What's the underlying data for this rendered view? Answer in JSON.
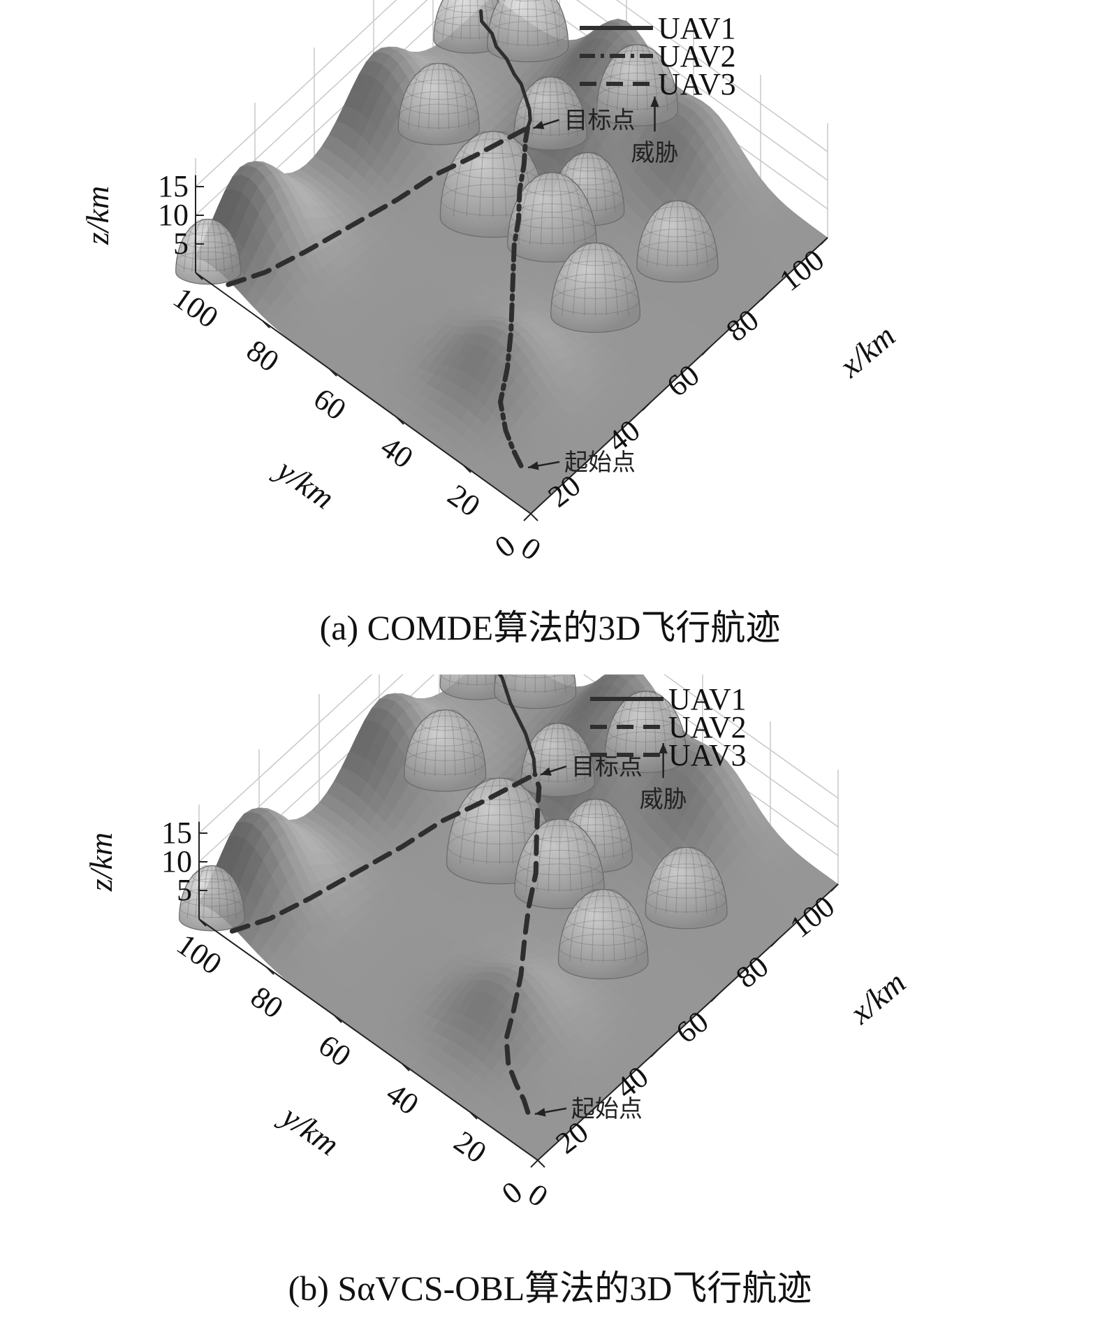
{
  "chart_data": [
    {
      "type": "3d-surface-trajectory",
      "caption": "(a) COMDE算法的3D飞行航迹",
      "axes": {
        "x": {
          "label": "x/km",
          "ticks": [
            0,
            20,
            40,
            60,
            80,
            100
          ],
          "range": [
            0,
            100
          ]
        },
        "y": {
          "label": "y/km",
          "ticks": [
            0,
            20,
            40,
            60,
            80,
            100
          ],
          "range": [
            0,
            100
          ]
        },
        "z": {
          "label": "z/km",
          "ticks": [
            5,
            10,
            15
          ],
          "range": [
            0,
            15
          ]
        }
      },
      "grid": true,
      "legend_position": "top-right",
      "legend": [
        {
          "name": "UAV1",
          "style": "solid"
        },
        {
          "name": "UAV2",
          "style": "dash-dot"
        },
        {
          "name": "UAV3",
          "style": "dashed"
        }
      ],
      "annotations": {
        "target": "目标点",
        "threat": "威胁",
        "start": "起始点"
      },
      "target_point": [
        78,
        70,
        0
      ],
      "start_point": [
        8,
        10,
        0
      ],
      "mountains": [
        {
          "x": 15,
          "y": 95,
          "h": 13
        },
        {
          "x": 60,
          "y": 95,
          "h": 11
        },
        {
          "x": 80,
          "y": 55,
          "h": 9
        },
        {
          "x": 98,
          "y": 60,
          "h": 12
        },
        {
          "x": 95,
          "y": 35,
          "h": 9
        },
        {
          "x": 25,
          "y": 30,
          "h": 7
        }
      ],
      "threats": [
        {
          "x": 2,
          "y": 98,
          "r": 8
        },
        {
          "x": 88,
          "y": 96,
          "r": 9
        },
        {
          "x": 65,
          "y": 85,
          "r": 10
        },
        {
          "x": 80,
          "y": 65,
          "r": 9
        },
        {
          "x": 95,
          "y": 85,
          "r": 10
        },
        {
          "x": 55,
          "y": 60,
          "r": 13
        },
        {
          "x": 58,
          "y": 45,
          "r": 11
        },
        {
          "x": 70,
          "y": 45,
          "r": 9
        },
        {
          "x": 50,
          "y": 25,
          "r": 11
        },
        {
          "x": 72,
          "y": 20,
          "r": 10
        },
        {
          "x": 98,
          "y": 55,
          "r": 10
        }
      ],
      "series": [
        {
          "name": "UAV1",
          "style": "solid",
          "points": [
            [
              95,
              99
            ],
            [
              93,
              97
            ],
            [
              92,
              93
            ],
            [
              90,
              90
            ],
            [
              89,
              86
            ],
            [
              87,
              82
            ],
            [
              86,
              79
            ],
            [
              84,
              76
            ],
            [
              82,
              73
            ],
            [
              80,
              71
            ],
            [
              78,
              70
            ]
          ]
        },
        {
          "name": "UAV2",
          "style": "dash-dot",
          "points": [
            [
              8,
              10
            ],
            [
              10,
              14
            ],
            [
              13,
              19
            ],
            [
              18,
              25
            ],
            [
              26,
              30
            ],
            [
              34,
              36
            ],
            [
              40,
              41
            ],
            [
              46,
              46
            ],
            [
              52,
              51
            ],
            [
              58,
              55
            ],
            [
              64,
              60
            ],
            [
              70,
              64
            ],
            [
              75,
              68
            ],
            [
              78,
              70
            ]
          ]
        },
        {
          "name": "UAV3",
          "style": "dashed",
          "points": [
            [
              2,
              92
            ],
            [
              10,
              88
            ],
            [
              20,
              85
            ],
            [
              32,
              82
            ],
            [
              44,
              79
            ],
            [
              55,
              77
            ],
            [
              64,
              74
            ],
            [
              71,
              72
            ],
            [
              78,
              70
            ]
          ]
        }
      ]
    },
    {
      "type": "3d-surface-trajectory",
      "caption": "(b) SαVCS-OBL算法的3D飞行航迹",
      "axes": {
        "x": {
          "label": "x/km",
          "ticks": [
            0,
            20,
            40,
            60,
            80,
            100
          ],
          "range": [
            0,
            100
          ]
        },
        "y": {
          "label": "y/km",
          "ticks": [
            0,
            20,
            40,
            60,
            80,
            100
          ],
          "range": [
            0,
            100
          ]
        },
        "z": {
          "label": "z/km",
          "ticks": [
            5,
            10,
            15
          ],
          "range": [
            0,
            15
          ]
        }
      },
      "grid": true,
      "legend_position": "top-right",
      "legend": [
        {
          "name": "UAV1",
          "style": "solid"
        },
        {
          "name": "UAV2",
          "style": "dashed"
        },
        {
          "name": "UAV3",
          "style": "dashed"
        }
      ],
      "annotations": {
        "target": "目标点",
        "threat": "威胁",
        "start": "起始点"
      },
      "target_point": [
        78,
        70,
        0
      ],
      "start_point": [
        8,
        10,
        0
      ],
      "mountains": [
        {
          "x": 15,
          "y": 95,
          "h": 13
        },
        {
          "x": 60,
          "y": 95,
          "h": 11
        },
        {
          "x": 80,
          "y": 55,
          "h": 9
        },
        {
          "x": 98,
          "y": 60,
          "h": 12
        },
        {
          "x": 95,
          "y": 35,
          "h": 9
        },
        {
          "x": 25,
          "y": 30,
          "h": 7
        }
      ],
      "threats": [
        {
          "x": 2,
          "y": 98,
          "r": 8
        },
        {
          "x": 88,
          "y": 96,
          "r": 9
        },
        {
          "x": 65,
          "y": 85,
          "r": 10
        },
        {
          "x": 80,
          "y": 65,
          "r": 9
        },
        {
          "x": 95,
          "y": 85,
          "r": 10
        },
        {
          "x": 55,
          "y": 60,
          "r": 13
        },
        {
          "x": 58,
          "y": 45,
          "r": 11
        },
        {
          "x": 70,
          "y": 45,
          "r": 9
        },
        {
          "x": 50,
          "y": 25,
          "r": 11
        },
        {
          "x": 72,
          "y": 20,
          "r": 10
        },
        {
          "x": 98,
          "y": 55,
          "r": 10
        }
      ],
      "series": [
        {
          "name": "UAV1",
          "style": "solid",
          "points": [
            [
              95,
              99
            ],
            [
              94,
              96
            ],
            [
              93,
              93
            ],
            [
              91,
              90
            ],
            [
              89,
              87
            ],
            [
              87,
              83
            ],
            [
              85,
              79
            ],
            [
              83,
              76
            ],
            [
              81,
              73
            ],
            [
              79,
              71
            ],
            [
              78,
              70
            ]
          ]
        },
        {
          "name": "UAV2",
          "style": "dashed",
          "points": [
            [
              8,
              10
            ],
            [
              10,
              13
            ],
            [
              12,
              17
            ],
            [
              15,
              22
            ],
            [
              20,
              27
            ],
            [
              27,
              31
            ],
            [
              35,
              36
            ],
            [
              43,
              42
            ],
            [
              50,
              47
            ],
            [
              58,
              52
            ],
            [
              65,
              58
            ],
            [
              71,
              63
            ],
            [
              76,
              67
            ],
            [
              78,
              70
            ]
          ]
        },
        {
          "name": "UAV3",
          "style": "dashed",
          "points": [
            [
              2,
              92
            ],
            [
              10,
              88
            ],
            [
              20,
              85
            ],
            [
              32,
              82
            ],
            [
              44,
              79
            ],
            [
              55,
              77
            ],
            [
              64,
              74
            ],
            [
              71,
              72
            ],
            [
              78,
              70
            ]
          ]
        }
      ]
    }
  ]
}
